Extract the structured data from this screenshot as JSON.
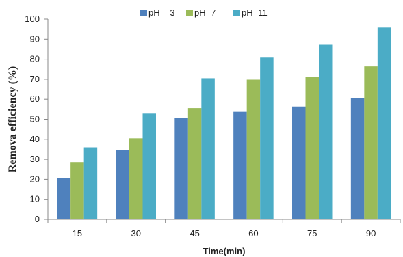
{
  "chart_data": {
    "type": "bar",
    "title": "",
    "xlabel": "Time(min)",
    "ylabel": "Remova efficiency (%)",
    "categories": [
      "15",
      "30",
      "45",
      "60",
      "75",
      "90"
    ],
    "ylim": [
      0,
      100
    ],
    "yticks": [
      0,
      10,
      20,
      30,
      40,
      50,
      60,
      70,
      80,
      90,
      100
    ],
    "grid": false,
    "legend_position": "top",
    "series": [
      {
        "name": "pH = 3",
        "color": "#4f81bd",
        "values": [
          20.8,
          34.8,
          50.7,
          53.7,
          56.4,
          60.6
        ]
      },
      {
        "name": "pH=7",
        "color": "#9bbb59",
        "values": [
          28.6,
          40.5,
          55.6,
          69.8,
          71.3,
          76.4
        ]
      },
      {
        "name": "pH=11",
        "color": "#4bacc6",
        "values": [
          36.0,
          52.8,
          70.5,
          80.8,
          87.2,
          95.8
        ]
      }
    ]
  }
}
